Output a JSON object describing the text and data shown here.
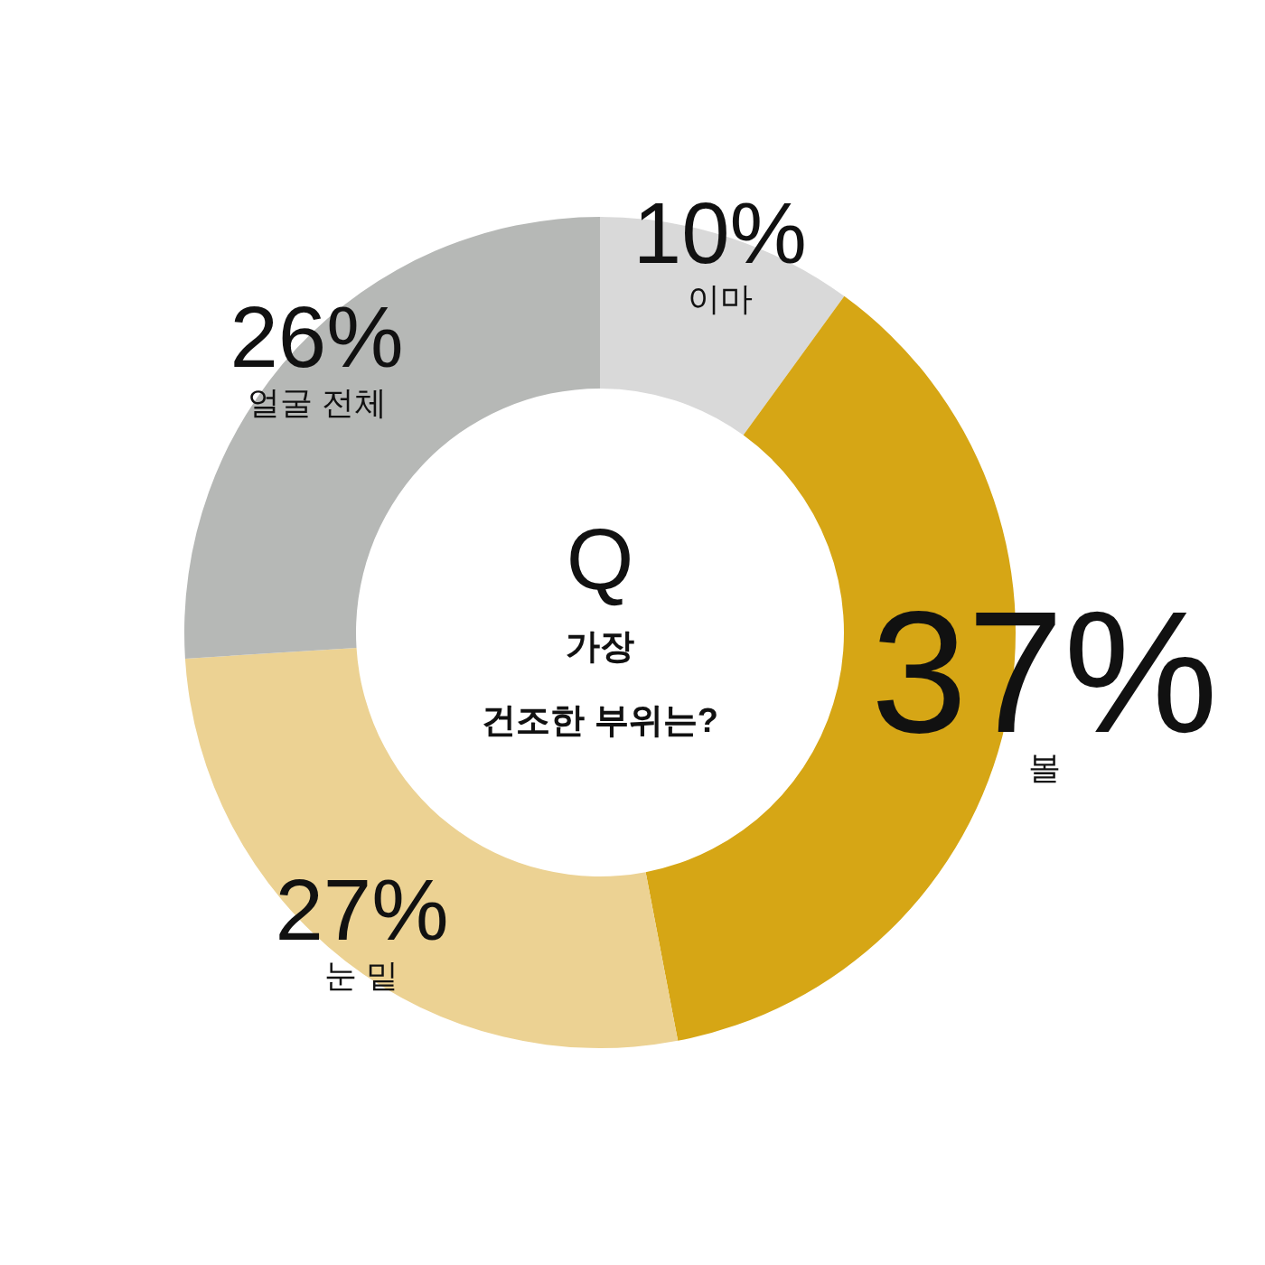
{
  "chart_data": {
    "type": "donut",
    "title": "Q",
    "subtitle": "가장\n건조한 부위는?",
    "categories": [
      "이마",
      "볼",
      "눈 밑",
      "얼굴 전체"
    ],
    "values": [
      10,
      37,
      27,
      26
    ],
    "colors": [
      "#d9d9d9",
      "#d6a615",
      "#ecd293",
      "#b6b8b6"
    ],
    "value_labels": [
      "10%",
      "37%",
      "27%",
      "26%"
    ]
  }
}
